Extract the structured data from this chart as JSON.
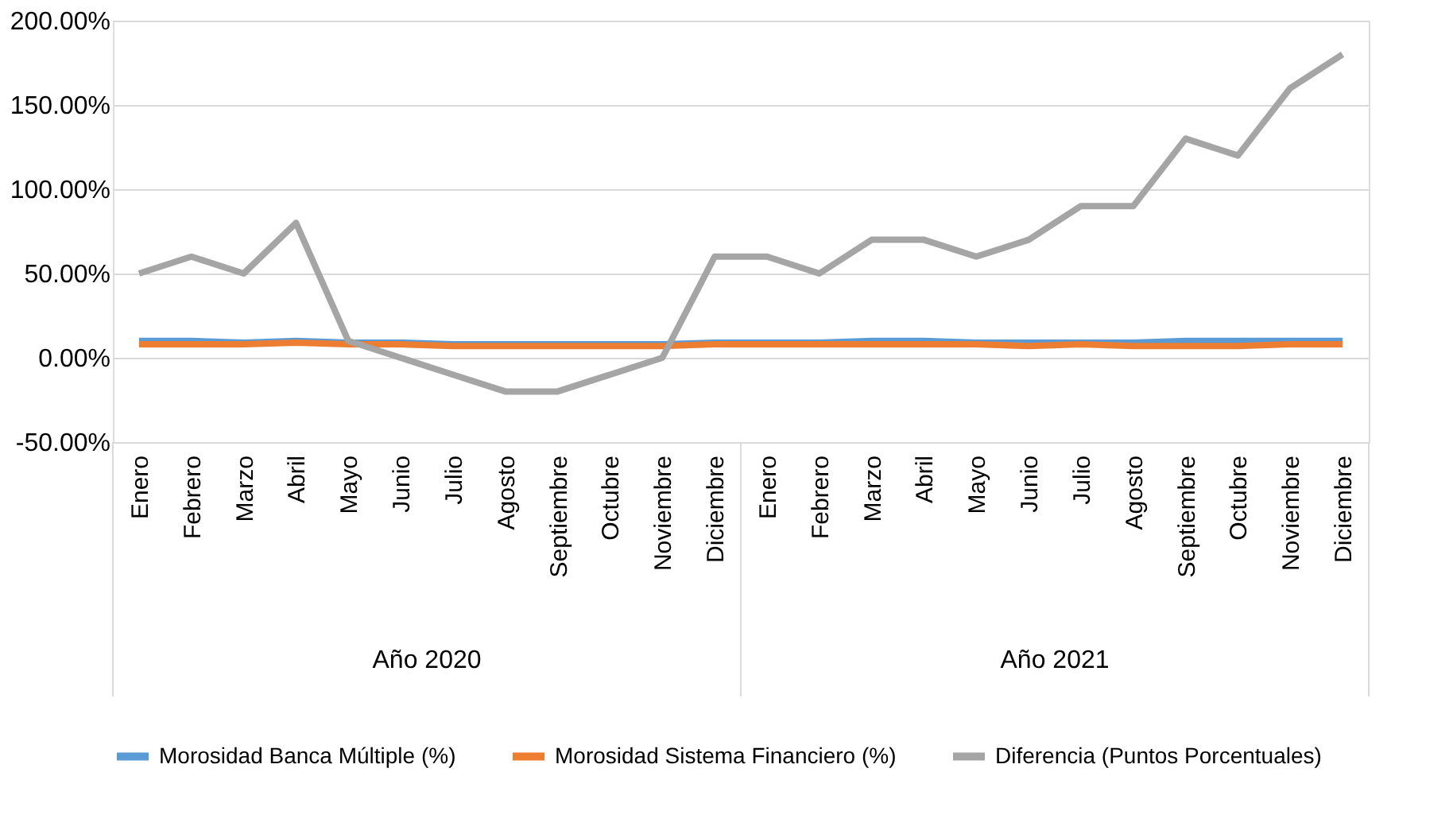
{
  "chart_data": {
    "type": "line",
    "categories": [
      "Enero",
      "Febrero",
      "Marzo",
      "Abril",
      "Mayo",
      "Junio",
      "Julio",
      "Agosto",
      "Septiembre",
      "Octubre",
      "Noviembre",
      "Diciembre",
      "Enero",
      "Febrero",
      "Marzo",
      "Abril",
      "Mayo",
      "Junio",
      "Julio",
      "Agosto",
      "Septiembre",
      "Octubre",
      "Noviembre",
      "Diciembre"
    ],
    "annotations": [
      "Año 2020",
      "Año 2021"
    ],
    "series": [
      {
        "name": "Morosidad Banca Múltiple (%)",
        "color": "#5b9bd5",
        "values": [
          10,
          10,
          9,
          10,
          9,
          9,
          8,
          8,
          8,
          8,
          8,
          9,
          9,
          9,
          10,
          10,
          9,
          9,
          9,
          9,
          10,
          10,
          10,
          10
        ]
      },
      {
        "name": "Morosidad Sistema Financiero (%)",
        "color": "#ed7d31",
        "values": [
          8,
          8,
          8,
          9,
          8,
          8,
          7,
          7,
          7,
          7,
          7,
          8,
          8,
          8,
          8,
          8,
          8,
          7,
          8,
          7,
          7,
          7,
          8,
          8
        ]
      },
      {
        "name": "Diferencia (Puntos Porcentuales)",
        "color": "#a5a5a5",
        "values": [
          50,
          60,
          50,
          80,
          10,
          0,
          -10,
          -20,
          -20,
          -10,
          0,
          60,
          60,
          50,
          70,
          70,
          60,
          70,
          90,
          90,
          130,
          120,
          160,
          180
        ]
      }
    ],
    "ylim": [
      -50,
      200
    ],
    "yticks": [
      {
        "value": -50,
        "label": "-50.00%"
      },
      {
        "value": 0,
        "label": "0.00%"
      },
      {
        "value": 50,
        "label": "50.00%"
      },
      {
        "value": 100,
        "label": "100.00%"
      },
      {
        "value": 150,
        "label": "150.00%"
      },
      {
        "value": 200,
        "label": "200.00%"
      }
    ],
    "grid": "y",
    "legend": "bottom",
    "marker": "none",
    "line_style": "solid"
  }
}
